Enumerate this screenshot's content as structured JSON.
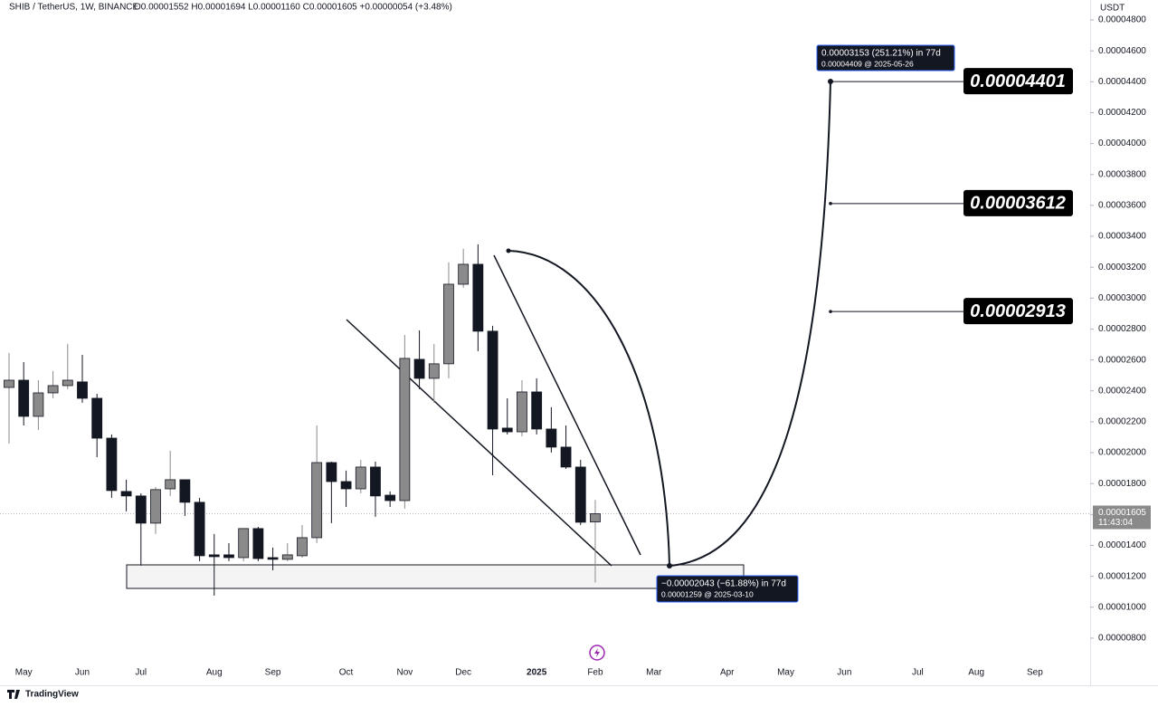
{
  "chart_data": {
    "type": "candlestick",
    "header": "SHIB / TetherUS, 1W, BINANCE",
    "header_ohlc": "O0.00001552 H0.00001694 L0.00001160 C0.00001605 +0.00000054 (+3.48%)",
    "axis_unit": "USDT",
    "brand": "TradingView",
    "up_color": "#8a8a8a",
    "down_color": "#131722",
    "open": [
      2.422e-05,
      2.469e-05,
      2.235e-05,
      2.387e-05,
      2.434e-05,
      2.458e-05,
      2.352e-05,
      2.094e-05,
      1.749e-05,
      1.72e-05,
      1.544e-05,
      1.766e-05,
      1.825e-05,
      1.679e-05,
      1.339e-05,
      1.339e-05,
      1.321e-05,
      1.509e-05,
      1.321e-05,
      1.31e-05,
      1.333e-05,
      1.45e-05,
      1.936e-05,
      1.813e-05,
      1.766e-05,
      1.907e-05,
      1.725e-05,
      1.69e-05,
      2.604e-05,
      2.481e-05,
      2.575e-05,
      3.09e-05,
      3.219e-05,
      2.786e-05,
      2.159e-05,
      2.135e-05,
      2.393e-05,
      2.153e-05,
      2.036e-05,
      1.907e-05,
      1.552e-05
    ],
    "high": [
      2.645e-05,
      2.586e-05,
      2.469e-05,
      2.528e-05,
      2.704e-05,
      2.633e-05,
      2.381e-05,
      2.118e-05,
      1.825e-05,
      1.737e-05,
      1.778e-05,
      2.012e-05,
      1.825e-05,
      1.708e-05,
      1.474e-05,
      1.415e-05,
      1.509e-05,
      1.52e-05,
      1.386e-05,
      1.415e-05,
      1.532e-05,
      2.176e-05,
      1.942e-05,
      1.884e-05,
      1.954e-05,
      1.942e-05,
      1.749e-05,
      2.762e-05,
      2.791e-05,
      2.704e-05,
      3.231e-05,
      3.319e-05,
      3.348e-05,
      2.821e-05,
      2.352e-05,
      2.469e-05,
      2.481e-05,
      2.294e-05,
      2.176e-05,
      1.954e-05,
      1.694e-05
    ],
    "low": [
      2.059e-05,
      2.176e-05,
      2.147e-05,
      2.352e-05,
      2.411e-05,
      2.323e-05,
      1.971e-05,
      1.708e-05,
      1.62e-05,
      1.269e-05,
      1.474e-05,
      1.72e-05,
      1.591e-05,
      1.298e-05,
      1.075e-05,
      1.298e-05,
      1.298e-05,
      1.298e-05,
      1.239e-05,
      1.298e-05,
      1.321e-05,
      1.415e-05,
      1.544e-05,
      1.649e-05,
      1.737e-05,
      1.585e-05,
      1.649e-05,
      1.638e-05,
      2.411e-05,
      2.323e-05,
      2.481e-05,
      3.067e-05,
      2.657e-05,
      1.854e-05,
      2.118e-05,
      2.106e-05,
      2.118e-05,
      2.001e-05,
      1.895e-05,
      1.532e-05,
      1.16e-05
    ],
    "close": [
      2.469e-05,
      2.235e-05,
      2.387e-05,
      2.434e-05,
      2.469e-05,
      2.352e-05,
      2.094e-05,
      1.755e-05,
      1.72e-05,
      1.544e-05,
      1.761e-05,
      1.825e-05,
      1.679e-05,
      1.333e-05,
      1.327e-05,
      1.321e-05,
      1.509e-05,
      1.315e-05,
      1.31e-05,
      1.339e-05,
      1.45e-05,
      1.936e-05,
      1.813e-05,
      1.766e-05,
      1.907e-05,
      1.72e-05,
      1.69e-05,
      2.61e-05,
      2.481e-05,
      2.575e-05,
      3.09e-05,
      3.219e-05,
      2.786e-05,
      2.153e-05,
      2.135e-05,
      2.393e-05,
      2.153e-05,
      2.036e-05,
      1.907e-05,
      1.55e-05,
      1.605e-05
    ],
    "xlim": [
      -0.617,
      73.77
    ],
    "xticks": [
      {
        "value": 1,
        "label": "May"
      },
      {
        "value": 5,
        "label": "Jun"
      },
      {
        "value": 9,
        "label": "Jul"
      },
      {
        "value": 14,
        "label": "Aug"
      },
      {
        "value": 18,
        "label": "Sep"
      },
      {
        "value": 23,
        "label": "Oct"
      },
      {
        "value": 27,
        "label": "Nov"
      },
      {
        "value": 31,
        "label": "Dec"
      },
      {
        "value": 36,
        "label": "2025"
      },
      {
        "value": 40,
        "label": "Feb"
      },
      {
        "value": 44,
        "label": "Mar"
      },
      {
        "value": 49,
        "label": "Apr"
      },
      {
        "value": 53,
        "label": "May"
      },
      {
        "value": 57,
        "label": "Jun"
      },
      {
        "value": 62,
        "label": "Jul"
      },
      {
        "value": 66,
        "label": "Aug"
      },
      {
        "value": 70,
        "label": "Sep"
      }
    ],
    "ylim": [
      4.95e-06,
      4.929e-05
    ],
    "yticks": [
      {
        "value": 8e-06,
        "label": "0.00000800"
      },
      {
        "value": 1e-05,
        "label": "0.00001000"
      },
      {
        "value": 1.2e-05,
        "label": "0.00001200"
      },
      {
        "value": 1.4e-05,
        "label": "0.00001400"
      },
      {
        "value": 1.6e-05,
        "label": "0.00001600"
      },
      {
        "value": 1.8e-05,
        "label": "0.00001800"
      },
      {
        "value": 2e-05,
        "label": "0.00002000"
      },
      {
        "value": 2.2e-05,
        "label": "0.00002200"
      },
      {
        "value": 2.4e-05,
        "label": "0.00002400"
      },
      {
        "value": 2.6e-05,
        "label": "0.00002600"
      },
      {
        "value": 2.8e-05,
        "label": "0.00002800"
      },
      {
        "value": 3e-05,
        "label": "0.00003000"
      },
      {
        "value": 3.2e-05,
        "label": "0.00003200"
      },
      {
        "value": 3.4e-05,
        "label": "0.00003400"
      },
      {
        "value": 3.6e-05,
        "label": "0.00003600"
      },
      {
        "value": 3.8e-05,
        "label": "0.00003800"
      },
      {
        "value": 4e-05,
        "label": "0.00004000"
      },
      {
        "value": 4.2e-05,
        "label": "0.00004200"
      },
      {
        "value": 4.4e-05,
        "label": "0.00004400"
      },
      {
        "value": 4.6e-05,
        "label": "0.00004600"
      },
      {
        "value": 4.8e-05,
        "label": "0.00004800"
      }
    ],
    "last_price": {
      "value": 1.605e-05,
      "label": "0.00001605"
    },
    "countdown": "11:43:04",
    "targets": [
      {
        "value": 4.401e-05,
        "label": "0.00004401"
      },
      {
        "value": 3.612e-05,
        "label": "0.00003612"
      },
      {
        "value": 2.913e-05,
        "label": "0.00002913"
      }
    ],
    "measure_up": [
      "0.00003153 (251.21%) in 77d",
      "0.00004409 @ 2025-05-26"
    ],
    "measure_down": [
      "−0.00002043 (−61.88%) in 77d",
      "0.00001259 @ 2025-03-10"
    ]
  }
}
